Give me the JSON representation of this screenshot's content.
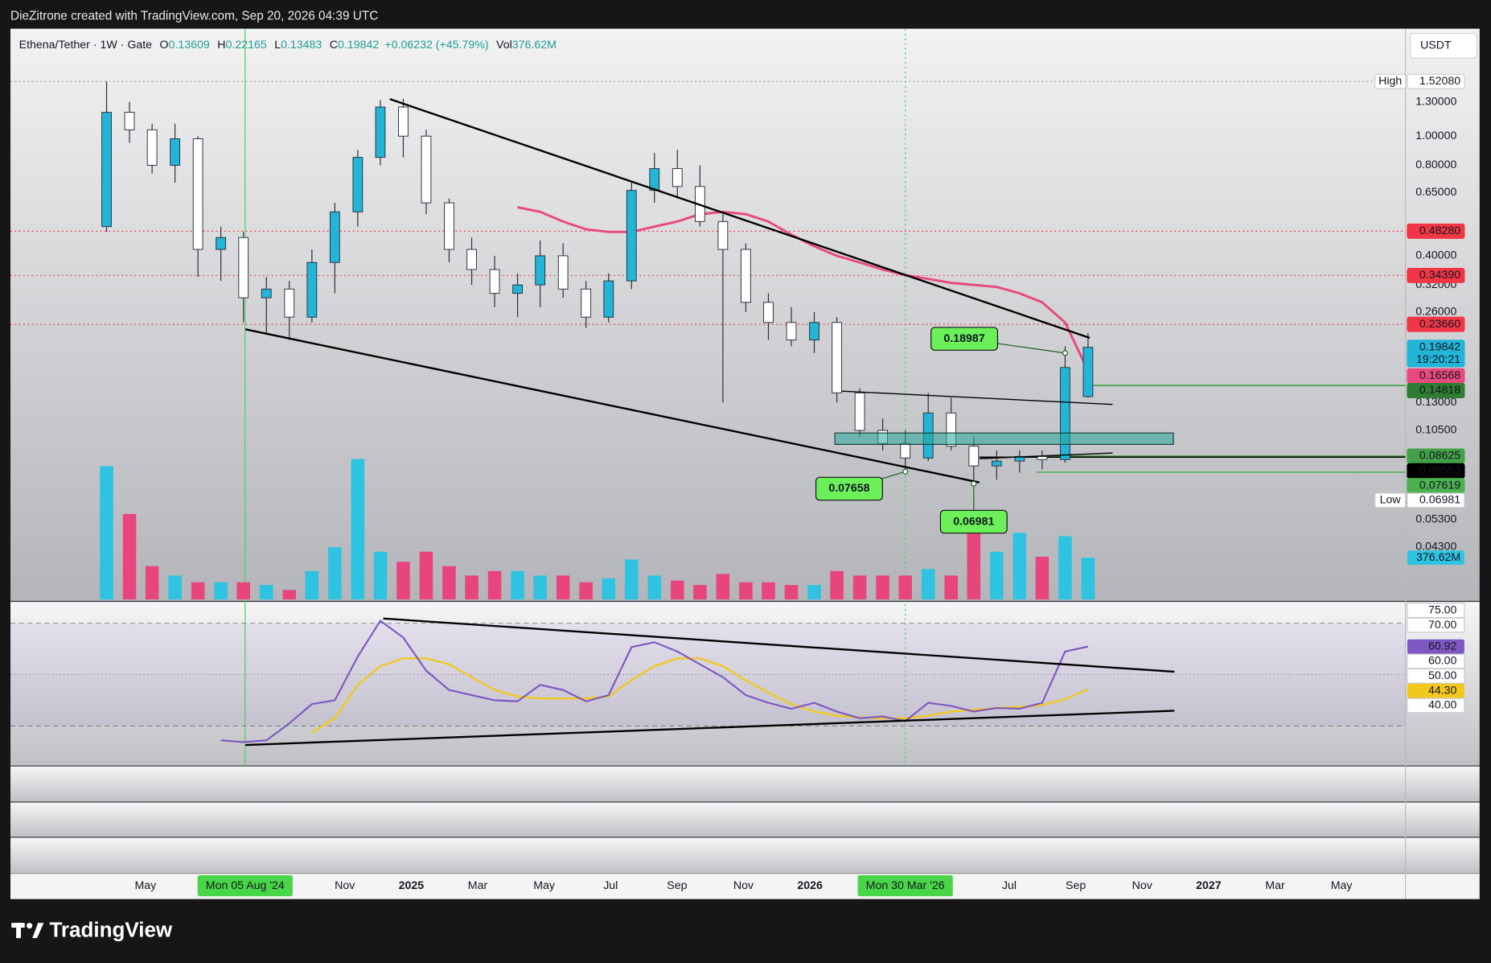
{
  "attribution": "DieZitrone created with TradingView.com, Sep 20, 2026 04:39 UTC",
  "brand": "TradingView",
  "currency": "USDT",
  "chart_data": {
    "type": "candlestick",
    "legend": {
      "symbol": "Ethena/Tether · 1W · Gate",
      "items": [
        {
          "label": "O",
          "value": "0.13609"
        },
        {
          "label": "H",
          "value": "0.22165"
        },
        {
          "label": "L",
          "value": "0.13483"
        },
        {
          "label": "C",
          "value": "0.19842"
        }
      ],
      "change": "+0.06232 (+45.79%)",
      "volume": {
        "label": "Vol",
        "value": "376.62M"
      }
    },
    "log_scale": true,
    "xlim": [
      0,
      42
    ],
    "ylim": [
      0.02835,
      2.277
    ],
    "volume_ylim": [
      0,
      5140
    ],
    "rsi_ylim": [
      14.44,
      78.52
    ],
    "x": [
      2.83,
      3.52,
      4.2,
      4.89,
      5.58,
      6.27,
      6.95,
      7.64,
      8.33,
      9.01,
      9.7,
      10.39,
      11.07,
      11.76,
      12.45,
      13.14,
      13.82,
      14.51,
      15.2,
      15.88,
      16.57,
      17.26,
      17.94,
      18.63,
      19.32,
      20.01,
      20.69,
      21.38,
      22.07,
      22.75,
      23.44,
      24.13,
      24.81,
      25.5,
      26.19,
      26.87,
      27.56,
      28.25,
      28.93,
      29.62,
      30.31,
      30.99,
      31.68,
      32.37
    ],
    "open": [
      0.5,
      1.2,
      1.05,
      0.8,
      0.98,
      0.42,
      0.46,
      0.29,
      0.31,
      0.25,
      0.38,
      0.56,
      0.85,
      1.25,
      1.0,
      0.6,
      0.42,
      0.36,
      0.3,
      0.32,
      0.4,
      0.31,
      0.25,
      0.33,
      0.66,
      0.78,
      0.68,
      0.52,
      0.42,
      0.28,
      0.24,
      0.21,
      0.24,
      0.14,
      0.105,
      0.095,
      0.085,
      0.12,
      0.093,
      0.08,
      0.083,
      0.086,
      0.084,
      0.13609
    ],
    "high": [
      1.5208,
      1.3,
      1.1,
      1.1,
      1.0,
      0.5,
      0.48,
      0.34,
      0.33,
      0.42,
      0.6,
      0.9,
      1.32,
      1.33,
      1.05,
      0.62,
      0.46,
      0.4,
      0.35,
      0.45,
      0.44,
      0.33,
      0.35,
      0.7,
      0.88,
      0.9,
      0.8,
      0.55,
      0.44,
      0.3,
      0.27,
      0.26,
      0.25,
      0.145,
      0.115,
      0.105,
      0.14,
      0.135,
      0.1,
      0.09,
      0.09,
      0.09,
      0.2,
      0.22165
    ],
    "low": [
      0.48,
      0.95,
      0.75,
      0.7,
      0.34,
      0.33,
      0.24,
      0.22,
      0.21,
      0.24,
      0.3,
      0.5,
      0.8,
      0.85,
      0.55,
      0.38,
      0.32,
      0.27,
      0.25,
      0.27,
      0.29,
      0.23,
      0.24,
      0.31,
      0.6,
      0.62,
      0.5,
      0.13,
      0.26,
      0.21,
      0.2,
      0.19,
      0.13,
      0.1,
      0.09,
      0.07658,
      0.083,
      0.09,
      0.06981,
      0.072,
      0.076,
      0.078,
      0.082,
      0.13483
    ],
    "close": [
      1.2,
      1.05,
      0.8,
      0.98,
      0.42,
      0.46,
      0.29,
      0.31,
      0.25,
      0.38,
      0.56,
      0.85,
      1.25,
      1.0,
      0.6,
      0.42,
      0.36,
      0.3,
      0.32,
      0.4,
      0.31,
      0.25,
      0.33,
      0.66,
      0.78,
      0.68,
      0.52,
      0.42,
      0.28,
      0.24,
      0.21,
      0.24,
      0.14,
      0.105,
      0.095,
      0.085,
      0.12,
      0.093,
      0.08,
      0.083,
      0.086,
      0.084,
      0.17,
      0.19842
    ],
    "volume": [
      1200,
      770,
      300,
      215,
      155,
      155,
      155,
      130,
      85,
      256,
      470,
      1265,
      430,
      340,
      430,
      300,
      215,
      256,
      256,
      215,
      215,
      155,
      190,
      360,
      215,
      170,
      130,
      230,
      155,
      155,
      130,
      130,
      256,
      215,
      215,
      215,
      275,
      215,
      600,
      430,
      600,
      385,
      570,
      376.62
    ],
    "volume_last_label": "376.62M",
    "ma": [
      null,
      null,
      null,
      null,
      null,
      null,
      null,
      null,
      null,
      null,
      null,
      null,
      null,
      null,
      null,
      null,
      null,
      null,
      0.58,
      0.56,
      0.52,
      0.49,
      0.48,
      0.48,
      0.5,
      0.52,
      0.55,
      0.56,
      0.55,
      0.52,
      0.47,
      0.43,
      0.4,
      0.38,
      0.36,
      0.345,
      0.335,
      0.325,
      0.32,
      0.315,
      0.3,
      0.28,
      0.24,
      0.16568
    ],
    "rsi": [
      null,
      null,
      null,
      null,
      null,
      24.4,
      23.7,
      24.4,
      31,
      38.5,
      40,
      57,
      71,
      64.4,
      51.5,
      44,
      42,
      40,
      39.6,
      46,
      44,
      39.6,
      42,
      60.7,
      62.6,
      59,
      54,
      49,
      42,
      39,
      36.7,
      39,
      35.6,
      33,
      33.7,
      31.9,
      39,
      37.8,
      35.6,
      37,
      36.7,
      39,
      59,
      60.92
    ],
    "rsi_ma": [
      null,
      null,
      null,
      null,
      null,
      null,
      null,
      null,
      null,
      27.4,
      33,
      46,
      53.3,
      56.3,
      56.3,
      54,
      49,
      44,
      41.5,
      40.7,
      40.7,
      40.7,
      41.5,
      47.8,
      53.3,
      56.3,
      56.3,
      53.3,
      47.8,
      43,
      38.5,
      35.6,
      34,
      33.3,
      33,
      33,
      34,
      35.6,
      36.3,
      37,
      37.4,
      38.1,
      40.4,
      44.3
    ],
    "rsi_last_label": "60.92",
    "rsi_ma_last_label": "44.30",
    "rsi_levels": [
      70,
      50,
      30
    ],
    "up_color": "#22b5d8",
    "down_color": "#ffffff",
    "wick_color": "#2a2e39",
    "volume_up_color": "#2ec3e0",
    "volume_down_color": "#e8457c",
    "ma_color": "#e84a7f",
    "rsi_color": "#7e57c2",
    "rsi_ma_color": "#f2c81f",
    "legend_value_color": "#1f9e94",
    "yticks": [
      {
        "value": 1.3,
        "label": "1.30000"
      },
      {
        "value": 1.0,
        "label": "1.00000"
      },
      {
        "value": 0.8,
        "label": "0.80000"
      },
      {
        "value": 0.65,
        "label": "0.65000"
      },
      {
        "value": 0.4,
        "label": "0.40000"
      },
      {
        "value": 0.32,
        "label": "0.32000"
      },
      {
        "value": 0.26,
        "label": "0.26000"
      },
      {
        "value": 0.13,
        "label": "0.13000"
      },
      {
        "value": 0.105,
        "label": "0.10500"
      },
      {
        "value": 0.053,
        "label": "0.05300"
      },
      {
        "value": 0.043,
        "label": "0.04300"
      }
    ],
    "rsi_ticks": [
      {
        "value": 75,
        "label": "75.00"
      },
      {
        "value": 70,
        "label": "70.00"
      },
      {
        "value": 60,
        "label": "60.00"
      },
      {
        "value": 50,
        "label": "50.00"
      },
      {
        "value": 40,
        "label": "40.00"
      }
    ],
    "price_tags": [
      {
        "value": 1.5208,
        "label": "1.52080",
        "caption": "High",
        "bg": "#ffffff",
        "fg": "#131722",
        "line": "dotted",
        "line_color": "#9598a1"
      },
      {
        "value": 0.4828,
        "label": "0.48280",
        "bg": "#f23645",
        "fg": "#ffffff",
        "line": "dotted",
        "line_color": "#f23645"
      },
      {
        "value": 0.3439,
        "label": "0.34390",
        "bg": "#f23645",
        "fg": "#ffffff",
        "line": "dotted",
        "line_color": "#f23645"
      },
      {
        "value": 0.2366,
        "label": "0.23660",
        "bg": "#f23645",
        "fg": "#ffffff",
        "line": "dotted",
        "line_color": "#f23645"
      },
      {
        "value": 0.19842,
        "label": "0.19842",
        "sub": "19:20:21",
        "bg": "#22b5d8",
        "fg": "#131722"
      },
      {
        "value": 0.16568,
        "label": "0.16568",
        "bg": "#e84a7f",
        "fg": "#ffffff"
      },
      {
        "value": 0.14818,
        "label": "0.14818",
        "bg": "#2e7d32",
        "fg": "#ffffff",
        "line": "solid",
        "line_color": "#2e9e3a"
      },
      {
        "value": 0.08625,
        "label": "0.08625",
        "bg": "#43a047",
        "fg": "#ffffff",
        "line": "solid",
        "line_color": "#43a047"
      },
      {
        "value": 0.08553,
        "label": "0.08553",
        "bg": "#000000",
        "fg": "#ffffff",
        "line": "solid",
        "line_color": "#000000"
      },
      {
        "value": 0.07619,
        "label": "0.07619",
        "bg": "#4caf50",
        "fg": "#ffffff",
        "line": "solid",
        "line_color": "#4caf50"
      },
      {
        "value": 0.06981,
        "label": "0.06981",
        "caption": "Low",
        "bg": "#ffffff",
        "fg": "#131722"
      }
    ],
    "callouts": [
      {
        "value": 0.18987,
        "x": 31.68
      },
      {
        "value": 0.07658,
        "x": 26.87
      },
      {
        "value": 0.06981,
        "x": 28.93
      }
    ],
    "markers": [
      {
        "label": "Mon 05 Aug '24",
        "x": 7.0
      },
      {
        "label": "Mon 30 Mar '26",
        "x": 26.87
      }
    ],
    "xticks": [
      {
        "value": 4,
        "label": "May"
      },
      {
        "value": 10,
        "label": "Nov"
      },
      {
        "value": 12,
        "label": "2025"
      },
      {
        "value": 14,
        "label": "Mar"
      },
      {
        "value": 16,
        "label": "May"
      },
      {
        "value": 18,
        "label": "Jul"
      },
      {
        "value": 20,
        "label": "Sep"
      },
      {
        "value": 22,
        "label": "Nov"
      },
      {
        "value": 24,
        "label": "2026"
      },
      {
        "value": 30,
        "label": "Jul"
      },
      {
        "value": 32,
        "label": "Sep"
      },
      {
        "value": 34,
        "label": "Nov"
      },
      {
        "value": 36,
        "label": "2027"
      },
      {
        "value": 38,
        "label": "Mar"
      },
      {
        "value": 40,
        "label": "May"
      }
    ]
  }
}
